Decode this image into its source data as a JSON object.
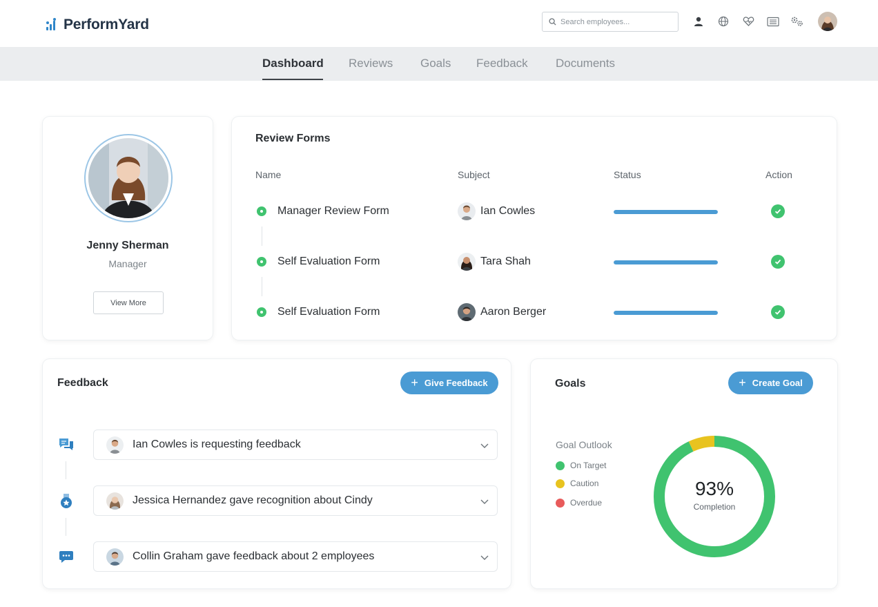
{
  "app": {
    "name": "PerformYard"
  },
  "header": {
    "search_placeholder": "Search employees...",
    "icons": [
      "search-icon",
      "person-icon",
      "globe-icon",
      "heart-icon",
      "list-icon",
      "gears-icon"
    ]
  },
  "nav": {
    "tabs": [
      {
        "label": "Dashboard",
        "active": true
      },
      {
        "label": "Reviews",
        "active": false
      },
      {
        "label": "Goals",
        "active": false
      },
      {
        "label": "Feedback",
        "active": false
      },
      {
        "label": "Documents",
        "active": false
      }
    ]
  },
  "profile": {
    "name": "Jenny Sherman",
    "role": "Manager",
    "button": "View More"
  },
  "review_forms": {
    "title": "Review Forms",
    "columns": {
      "name": "Name",
      "subject": "Subject",
      "status": "Status",
      "action": "Action"
    },
    "rows": [
      {
        "name": "Manager Review Form",
        "subject": "Ian Cowles",
        "progress": 1.0
      },
      {
        "name": "Self Evaluation Form",
        "subject": "Tara Shah",
        "progress": 1.0
      },
      {
        "name": "Self Evaluation Form",
        "subject": "Aaron Berger",
        "progress": 1.0
      }
    ]
  },
  "feedback": {
    "title": "Feedback",
    "button": "Give Feedback",
    "items": [
      {
        "text": "Ian Cowles is requesting feedback",
        "icon": "chat-bubbles-icon"
      },
      {
        "text": "Jessica Hernandez gave recognition about Cindy",
        "icon": "medal-icon"
      },
      {
        "text": "Collin Graham gave feedback about 2 employees",
        "icon": "speech-bubble-icon"
      }
    ]
  },
  "goals": {
    "title": "Goals",
    "button": "Create Goal",
    "outlook_title": "Goal Outlook",
    "legend": [
      {
        "label": "On Target",
        "color": "#40c36f"
      },
      {
        "label": "Caution",
        "color": "#e8c31f"
      },
      {
        "label": "Overdue",
        "color": "#e85b5b"
      }
    ],
    "completion_value": "93%",
    "completion_label": "Completion",
    "segments": {
      "on_target": 0.93,
      "caution": 0.07,
      "overdue": 0.0
    }
  }
}
